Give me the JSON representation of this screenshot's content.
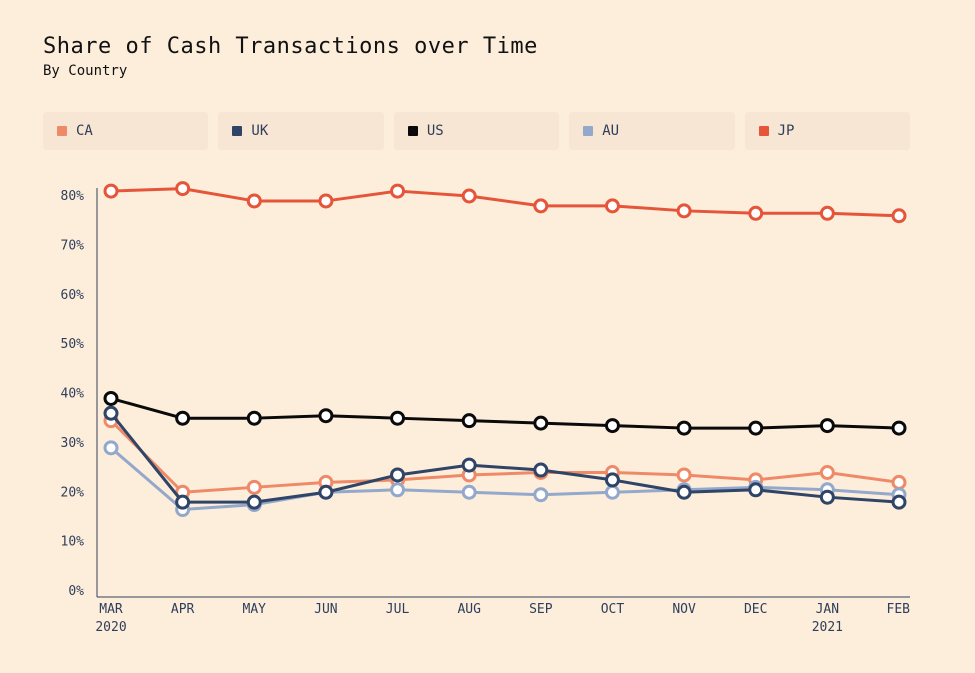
{
  "title": "Share of Cash Transactions over Time",
  "subtitle": "By Country",
  "chart_data": {
    "type": "line",
    "title": "Share of Cash Transactions over Time",
    "subtitle": "By Country",
    "categories": [
      "MAR",
      "APR",
      "MAY",
      "JUN",
      "JUL",
      "AUG",
      "SEP",
      "OCT",
      "NOV",
      "DEC",
      "JAN",
      "FEB"
    ],
    "year_labels": [
      "2020",
      "",
      "",
      "",
      "",
      "",
      "",
      "",
      "",
      "",
      "2021",
      ""
    ],
    "y_ticks": [
      "0%",
      "10%",
      "20%",
      "30%",
      "40%",
      "50%",
      "60%",
      "70%",
      "80%"
    ],
    "ylim": [
      0,
      80
    ],
    "series": [
      {
        "name": "CA",
        "color": "#ee8a68",
        "values": [
          34.5,
          20,
          21,
          22,
          22.5,
          23.5,
          24,
          24,
          23.5,
          22.5,
          24,
          22
        ]
      },
      {
        "name": "AU",
        "color": "#93a8cb",
        "values": [
          29,
          16.5,
          17.5,
          20,
          20.5,
          20,
          19.5,
          20,
          20.5,
          21,
          20.5,
          19.5
        ]
      },
      {
        "name": "UK",
        "color": "#2f4466",
        "values": [
          36,
          18,
          18,
          20,
          23.5,
          25.5,
          24.5,
          22.5,
          20,
          20.5,
          19,
          18
        ]
      },
      {
        "name": "US",
        "color": "#0a0a0a",
        "values": [
          39,
          35,
          35,
          35.5,
          35,
          34.5,
          34,
          33.5,
          33,
          33,
          33.5,
          33
        ]
      },
      {
        "name": "JP",
        "color": "#e5553a",
        "values": [
          81,
          81.5,
          79,
          79,
          81,
          80,
          78,
          78,
          77,
          76.5,
          76.5,
          76
        ]
      }
    ],
    "legend": [
      "CA",
      "UK",
      "US",
      "AU",
      "JP"
    ]
  }
}
